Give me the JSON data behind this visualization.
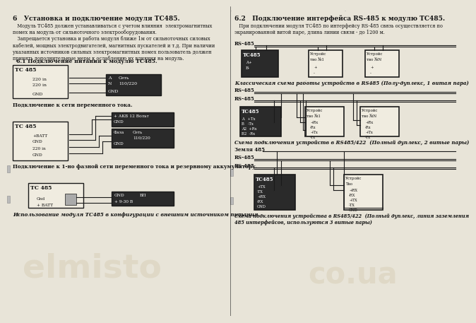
{
  "bg": "#e8e4d8",
  "border_dark": "#1a1a1a",
  "box_light": "#f0ece0",
  "box_dark": "#2a2a2a",
  "text_dark": "#111111",
  "text_white": "#ffffff",
  "title_left": "6   Установка и подключение модуля ТС485.",
  "title_right": "6.2   Подключение интерфейса RS-485 к модулю ТС485.",
  "body_left": "   Модуль ТС485 должен устанавливаться с учетом влияния  электромагнитных\nпомех на модуль от сильноточного электрооборудования.\n   Запрещается установка и работа модуля ближе 1м от сильноточных силовых\nкабелей, мощных электродвигателей, магнитных пускателей и т.д. При наличии\nуказанных источников сильных электромагнитных помех пользователь должен\nпринять дополнительные меры к ослаблению их влияния на модуль.",
  "sub1": "  6.1 Подключение питания к модулю ТС485.",
  "body_right": "   При подключении модуля ТС485 по интерфейсу RS-485 связь осуществляется по\nэкранированной витой паре, длина линии связи - до 1200 м.",
  "cap1": "Подключение к сети переменного тока.",
  "cap2": "Подключение к 1-но фазной сети переменного тока и резервному аккумулятору.",
  "cap3": "Использование модуля ТС485 в конфигурации с внешним источником питания.",
  "rcap1": "Классическая схема работы устройств в RS485 (Полу-дуплекс, 1 витая пара)",
  "rcap2": "Схема подключения устройств в RS485/422  (Полный дуплекс, 2 витые пары)",
  "rcap3": "Схема подключения устройства в RS485/422  (Полный дуплекс, линия заземления\n485 интерфейсов, используются 3 витые пары)",
  "wm_left": "elmisto",
  "wm_right": "co.ua"
}
